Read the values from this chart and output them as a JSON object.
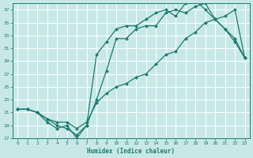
{
  "xlabel": "Humidex (Indice chaleur)",
  "bg_color": "#c8e8e8",
  "grid_color": "#ffffff",
  "line_color": "#1a7a6e",
  "xlim": [
    -0.5,
    23.5
  ],
  "ylim": [
    17,
    38
  ],
  "xticks": [
    0,
    1,
    2,
    3,
    4,
    5,
    6,
    7,
    8,
    9,
    10,
    11,
    12,
    13,
    14,
    15,
    16,
    17,
    18,
    19,
    20,
    21,
    22,
    23
  ],
  "yticks": [
    17,
    19,
    21,
    23,
    25,
    27,
    29,
    31,
    33,
    35,
    37
  ],
  "curve1_x": [
    0,
    1,
    2,
    3,
    4,
    5,
    6,
    7,
    8,
    9,
    10,
    11,
    12,
    13,
    14,
    15,
    16,
    17,
    18,
    19,
    20,
    21,
    22,
    23
  ],
  "curve1_y": [
    21.5,
    21.5,
    21.0,
    20.0,
    19.0,
    18.5,
    17.5,
    19.0,
    30.0,
    32.0,
    34.0,
    34.5,
    34.5,
    35.5,
    36.5,
    37.0,
    36.0,
    38.0,
    38.5,
    37.0,
    35.5,
    34.0,
    32.5,
    29.5
  ],
  "curve2_x": [
    0,
    1,
    2,
    3,
    4,
    5,
    6,
    7,
    8,
    9,
    10,
    11,
    12,
    13,
    14,
    15,
    16,
    17,
    18,
    19,
    20,
    21,
    22,
    23
  ],
  "curve2_y": [
    21.5,
    21.5,
    21.0,
    19.5,
    18.5,
    19.0,
    17.0,
    19.0,
    23.0,
    27.5,
    32.5,
    32.5,
    34.0,
    34.5,
    34.5,
    36.5,
    37.0,
    36.5,
    37.5,
    38.0,
    35.5,
    34.0,
    32.0,
    29.5
  ],
  "curve3_x": [
    0,
    1,
    2,
    3,
    4,
    5,
    6,
    7,
    8,
    9,
    10,
    11,
    12,
    13,
    14,
    15,
    16,
    17,
    18,
    19,
    20,
    21,
    22,
    23
  ],
  "curve3_y": [
    21.5,
    21.5,
    21.0,
    20.0,
    19.5,
    19.5,
    18.5,
    19.5,
    22.5,
    24.0,
    25.0,
    25.5,
    26.5,
    27.0,
    28.5,
    30.0,
    30.5,
    32.5,
    33.5,
    35.0,
    35.5,
    36.0,
    37.0,
    29.5
  ]
}
